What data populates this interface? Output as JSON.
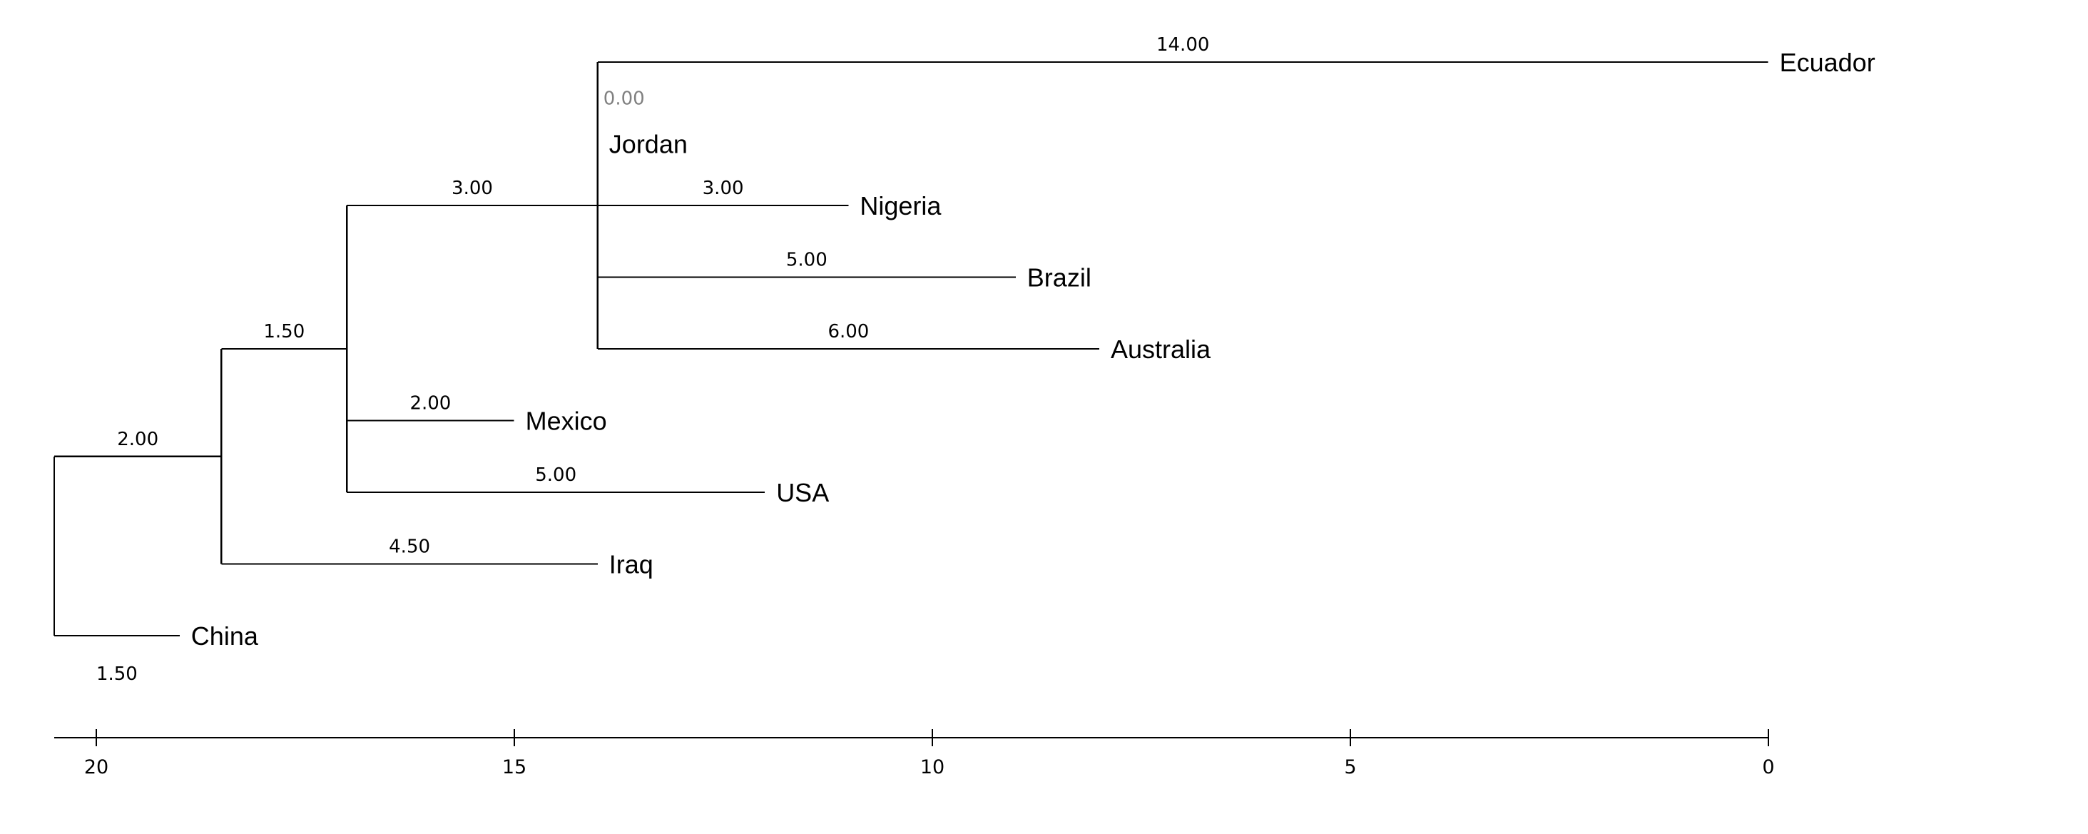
{
  "tree": {
    "colors": {
      "line": "#000000",
      "zero_length_label": "#808080",
      "background": "#ffffff"
    },
    "nodes": {
      "root": {
        "parent": null,
        "label": "",
        "branch_length": 0,
        "branch_label": ""
      },
      "n_main": {
        "parent": "root",
        "label": "",
        "branch_length": 2.0,
        "branch_label": "2.00"
      },
      "China": {
        "parent": "root",
        "label": "China",
        "branch_length": 1.5,
        "branch_label": "1.50"
      },
      "n_mid": {
        "parent": "n_main",
        "label": "",
        "branch_length": 1.5,
        "branch_label": "1.50"
      },
      "Iraq": {
        "parent": "n_main",
        "label": "Iraq",
        "branch_length": 4.5,
        "branch_label": "4.50"
      },
      "n_jordan": {
        "parent": "n_mid",
        "label": "",
        "branch_length": 3.0,
        "branch_label": "3.00"
      },
      "Mexico": {
        "parent": "n_mid",
        "label": "Mexico",
        "branch_length": 2.0,
        "branch_label": "2.00"
      },
      "USA": {
        "parent": "n_mid",
        "label": "USA",
        "branch_length": 5.0,
        "branch_label": "5.00"
      },
      "Ecuador": {
        "parent": "n_jordan",
        "label": "Ecuador",
        "branch_length": 14.0,
        "branch_label": "14.00"
      },
      "Jordan": {
        "parent": "n_jordan",
        "label": "Jordan",
        "branch_length": 0.0,
        "branch_label": "0.00"
      },
      "Nigeria": {
        "parent": "n_jordan",
        "label": "Nigeria",
        "branch_length": 3.0,
        "branch_label": "3.00"
      },
      "Brazil": {
        "parent": "n_jordan",
        "label": "Brazil",
        "branch_length": 5.0,
        "branch_label": "5.00"
      },
      "Australia": {
        "parent": "n_jordan",
        "label": "Australia",
        "branch_length": 6.0,
        "branch_label": "6.00"
      }
    },
    "leaf_order": [
      "Ecuador",
      "Jordan",
      "Nigeria",
      "Brazil",
      "Australia",
      "Mexico",
      "USA",
      "Iraq",
      "China"
    ],
    "axis": {
      "ticks": [
        20,
        15,
        10,
        5,
        0
      ],
      "tick_labels": [
        "20",
        "15",
        "10",
        "5",
        "0"
      ],
      "range": [
        20.5,
        0
      ]
    }
  }
}
